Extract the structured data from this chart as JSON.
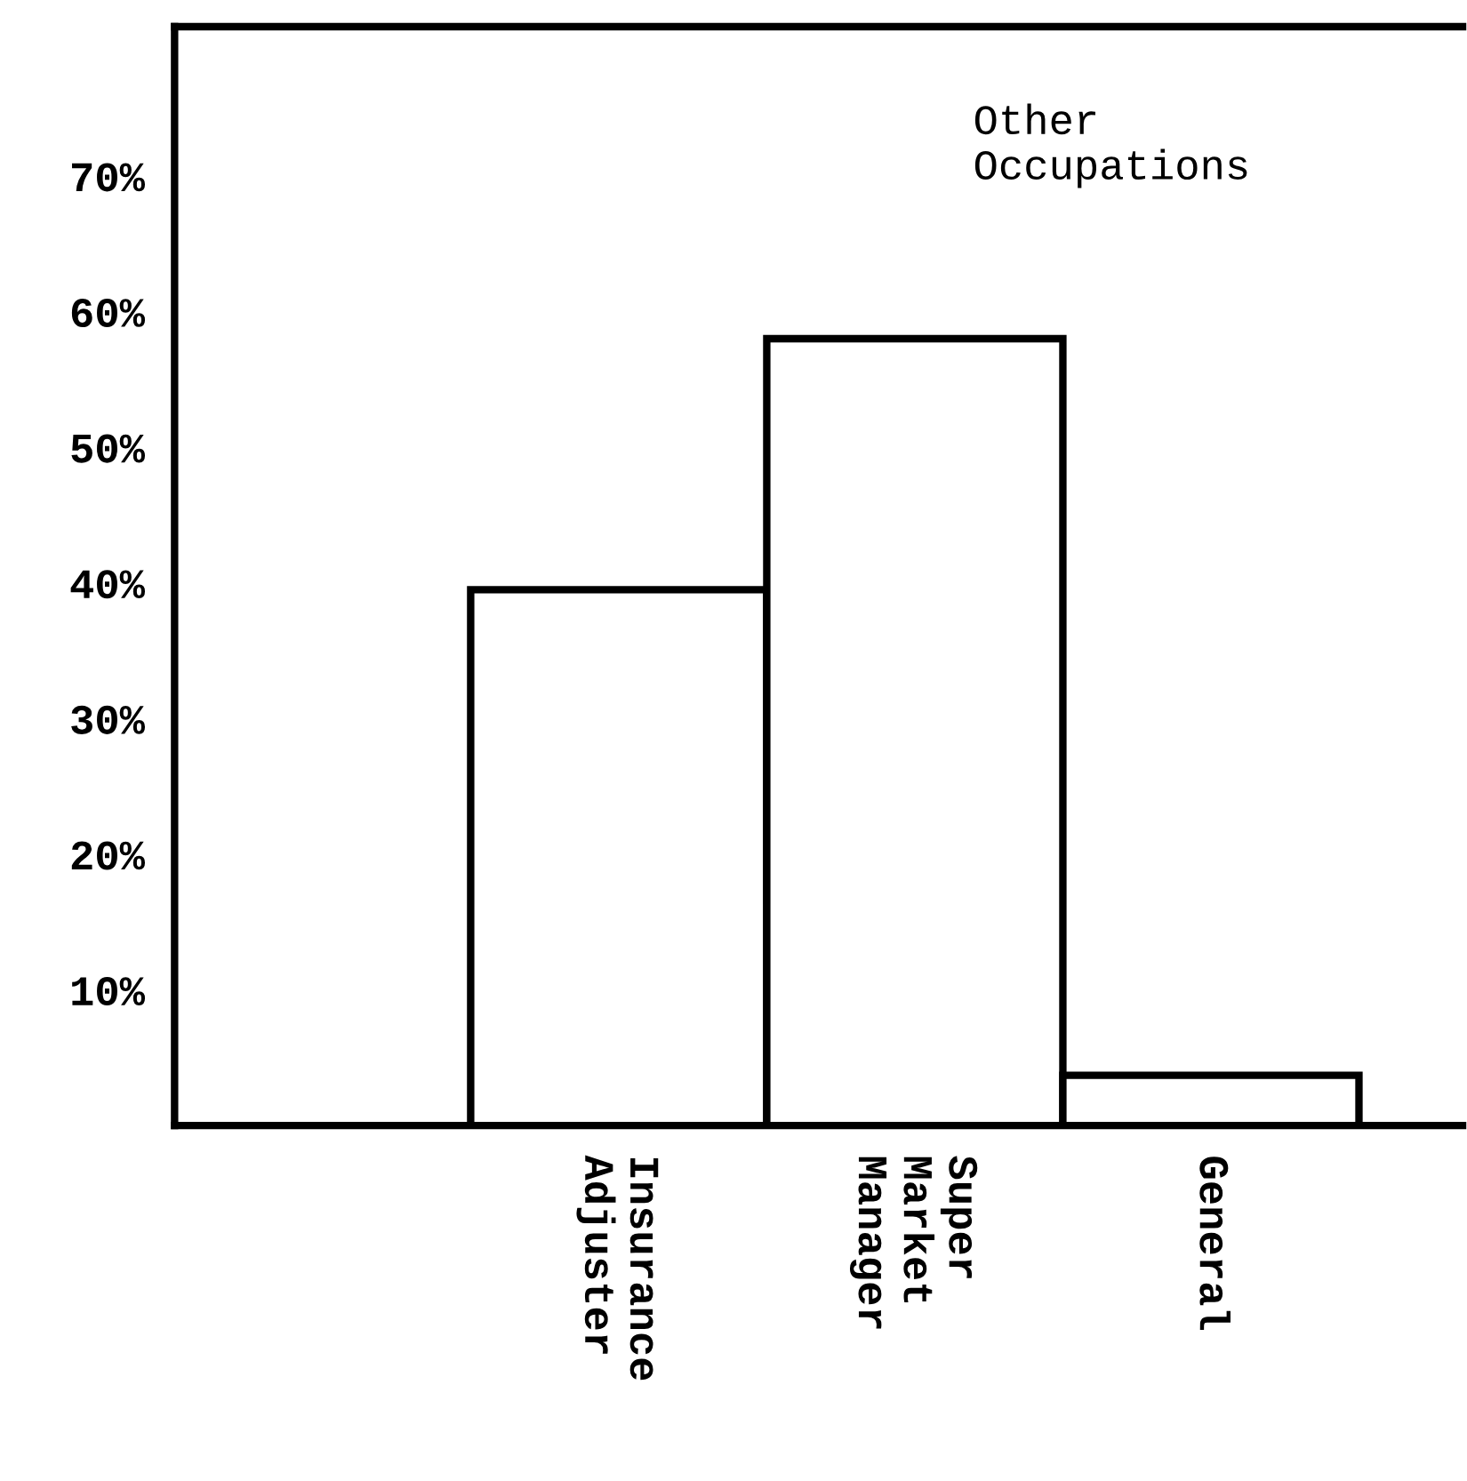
{
  "chart_data": {
    "type": "bar",
    "categories": [
      "Insurance\nAdjuster",
      "Super\nMarket\nManager",
      "General"
    ],
    "values": [
      39.5,
      58,
      3.7
    ],
    "color": "#ffffff",
    "ylim": [
      0,
      81
    ],
    "yticks": [
      {
        "value": 10,
        "label": "10%"
      },
      {
        "value": 20,
        "label": "20%"
      },
      {
        "value": 30,
        "label": "30%"
      },
      {
        "value": 40,
        "label": "40%"
      },
      {
        "value": 50,
        "label": "50%"
      },
      {
        "value": 60,
        "label": "60%"
      },
      {
        "value": 70,
        "label": "70%"
      }
    ],
    "annotations": [
      "Other\nOccupations"
    ],
    "grid": false,
    "legend": false
  }
}
